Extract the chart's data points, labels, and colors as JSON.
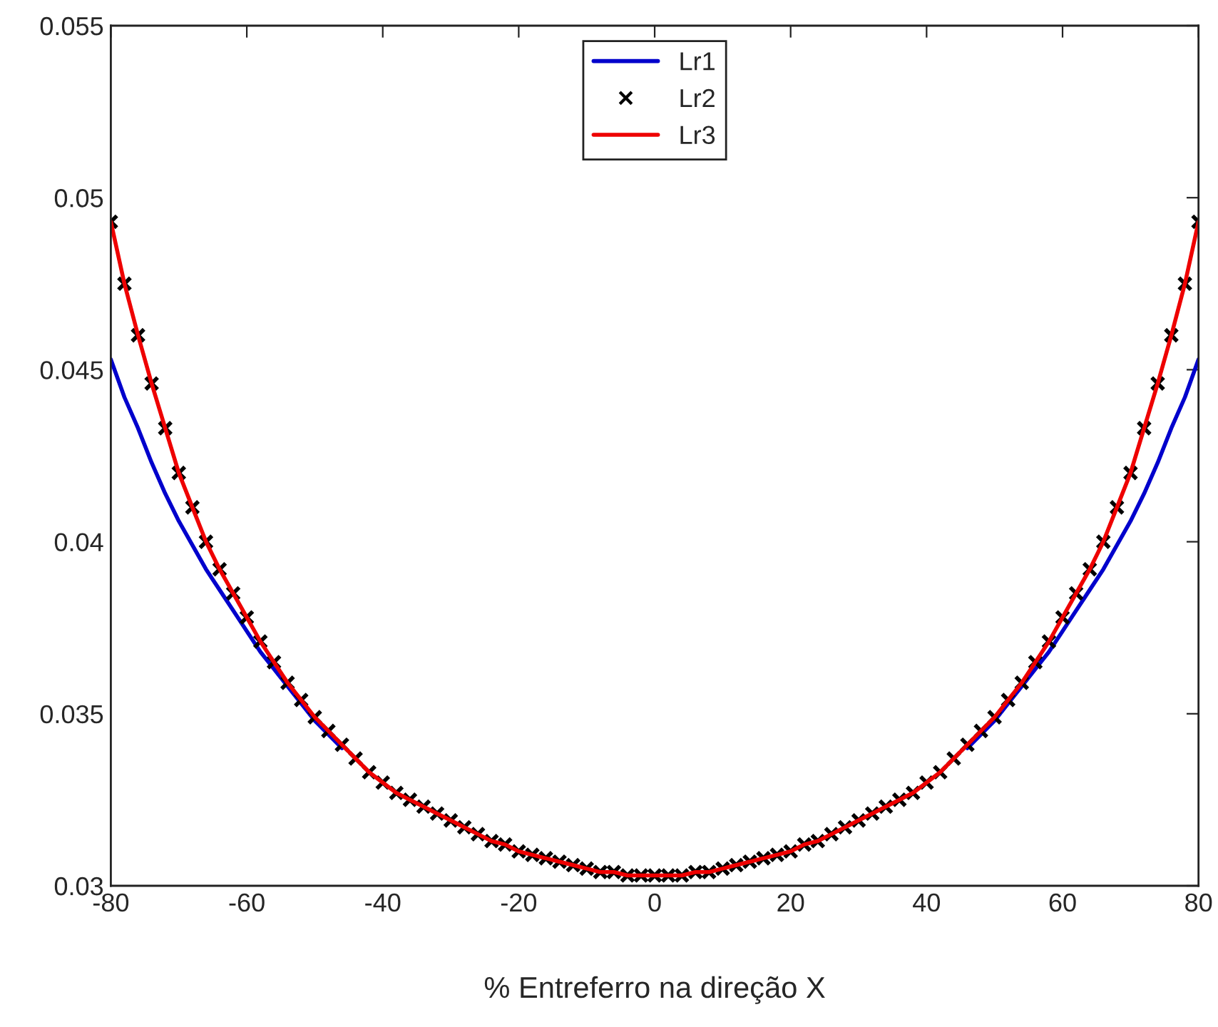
{
  "chart_data": {
    "type": "line",
    "xlabel": "% Entreferro na direção X",
    "x": [
      -80,
      -78,
      -76,
      -74,
      -72,
      -70,
      -68,
      -66,
      -64,
      -62,
      -60,
      -58,
      -56,
      -54,
      -52,
      -50,
      -48,
      -46,
      -44,
      -42,
      -40,
      -38,
      -36,
      -34,
      -32,
      -30,
      -28,
      -26,
      -24,
      -22,
      -20,
      -18,
      -16,
      -14,
      -12,
      -10,
      -8,
      -6,
      -4,
      -2,
      0,
      2,
      4,
      6,
      8,
      10,
      12,
      14,
      16,
      18,
      20,
      22,
      24,
      26,
      28,
      30,
      32,
      34,
      36,
      38,
      40,
      42,
      44,
      46,
      48,
      50,
      52,
      54,
      56,
      58,
      60,
      62,
      64,
      66,
      68,
      70,
      72,
      74,
      76,
      78,
      80
    ],
    "series": [
      {
        "name": "Lr1",
        "color": "#0000cc",
        "values": [
          0.0453,
          0.0442,
          0.0433,
          0.0423,
          0.0414,
          0.0406,
          0.0399,
          0.0392,
          0.0386,
          0.038,
          0.0374,
          0.0368,
          0.0363,
          0.0358,
          0.0353,
          0.0348,
          0.0344,
          0.034,
          null,
          null,
          null,
          null,
          null,
          null,
          null,
          null,
          null,
          null,
          null,
          null,
          null,
          null,
          null,
          null,
          null,
          null,
          null,
          null,
          null,
          null,
          null,
          null,
          null,
          null,
          null,
          null,
          null,
          null,
          null,
          null,
          null,
          null,
          null,
          null,
          null,
          null,
          null,
          null,
          null,
          null,
          null,
          null,
          null,
          0.034,
          0.0344,
          0.0348,
          0.0353,
          0.0358,
          0.0363,
          0.0368,
          0.0374,
          0.038,
          0.0386,
          0.0392,
          0.0399,
          0.0406,
          0.0414,
          0.0423,
          0.0433,
          0.0442,
          0.0453
        ]
      },
      {
        "name": "Lr2",
        "color": "#000000",
        "type": "scatter",
        "marker": "cross",
        "values": [
          0.0493,
          0.0475,
          0.046,
          0.0446,
          0.0433,
          0.042,
          0.041,
          0.04,
          0.0392,
          0.0385,
          0.0378,
          0.0371,
          0.0365,
          0.0359,
          0.0354,
          0.0349,
          0.0345,
          0.0341,
          0.0337,
          0.0333,
          0.033,
          0.0327,
          0.0325,
          0.0323,
          0.0321,
          0.0319,
          0.0317,
          0.0315,
          0.0313,
          0.0312,
          0.031,
          0.0309,
          0.0308,
          0.0307,
          0.0306,
          0.0305,
          0.0304,
          0.0304,
          0.0303,
          0.0303,
          0.0303,
          0.0303,
          0.0303,
          0.0304,
          0.0304,
          0.0305,
          0.0306,
          0.0307,
          0.0308,
          0.0309,
          0.031,
          0.0312,
          0.0313,
          0.0315,
          0.0317,
          0.0319,
          0.0321,
          0.0323,
          0.0325,
          0.0327,
          0.033,
          0.0333,
          0.0337,
          0.0341,
          0.0345,
          0.0349,
          0.0354,
          0.0359,
          0.0365,
          0.0371,
          0.0378,
          0.0385,
          0.0392,
          0.04,
          0.041,
          0.042,
          0.0433,
          0.0446,
          0.046,
          0.0475,
          0.0493
        ]
      },
      {
        "name": "Lr3",
        "color": "#ee0000",
        "values": [
          0.0493,
          0.0475,
          0.046,
          0.0446,
          0.0433,
          0.042,
          0.041,
          0.04,
          0.0392,
          0.0385,
          0.0378,
          0.0371,
          0.0365,
          0.0359,
          0.0354,
          0.0349,
          0.0345,
          0.0341,
          0.0337,
          0.0333,
          0.033,
          0.0327,
          0.0325,
          0.0323,
          0.0321,
          0.0319,
          0.0317,
          0.0315,
          0.0313,
          0.0312,
          0.031,
          0.0309,
          0.0308,
          0.0307,
          0.0306,
          0.0305,
          0.0304,
          0.0304,
          0.0303,
          0.0303,
          0.0303,
          0.0303,
          0.0303,
          0.0304,
          0.0304,
          0.0305,
          0.0306,
          0.0307,
          0.0308,
          0.0309,
          0.031,
          0.0312,
          0.0313,
          0.0315,
          0.0317,
          0.0319,
          0.0321,
          0.0323,
          0.0325,
          0.0327,
          0.033,
          0.0333,
          0.0337,
          0.0341,
          0.0345,
          0.0349,
          0.0354,
          0.0359,
          0.0365,
          0.0371,
          0.0378,
          0.0385,
          0.0392,
          0.04,
          0.041,
          0.042,
          0.0433,
          0.0446,
          0.046,
          0.0475,
          0.0493
        ]
      }
    ],
    "xlim": [
      -80,
      80
    ],
    "xticks": [
      -80,
      -60,
      -40,
      -20,
      0,
      20,
      40,
      60,
      80
    ],
    "ylim": [
      0.03,
      0.055
    ],
    "yticks": [
      0.03,
      0.035,
      0.04,
      0.045,
      0.05,
      0.055
    ],
    "grid": false,
    "legend": "top"
  }
}
